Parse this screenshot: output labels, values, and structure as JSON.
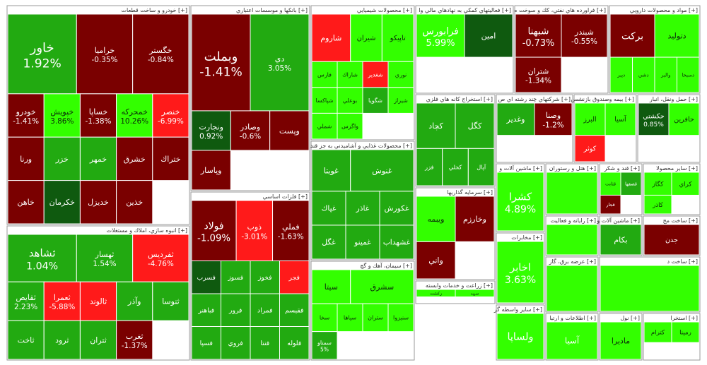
{
  "chart_data": {
    "type": "treemap",
    "colors": {
      "strong_up": "#33ff00",
      "up": "#22aa11",
      "dark_up": "#0f5a0f",
      "flat_down": "#8b1a1a",
      "down": "#7a0000",
      "strong_down": "#ff1a1a"
    },
    "sectors": [
      {
        "name": "خودرو و ساخت قطعات [+]",
        "col": 0,
        "row": 0,
        "tiles": [
          {
            "label": "خاور",
            "value": "1.92%",
            "shade": "up",
            "w": 0.37,
            "h": 0.33
          },
          {
            "label": "خراميا",
            "value": "-0.35%",
            "shade": "down",
            "w": 0.3,
            "h": 0.33
          },
          {
            "label": "خگستر",
            "value": "-0.84%",
            "shade": "down",
            "w": 0.33,
            "h": 0.33
          },
          {
            "label": "خودرو",
            "value": "-1.41%",
            "shade": "down",
            "w": 0.27,
            "h": 0.33
          },
          {
            "label": "خپويش",
            "value": "3.86%",
            "shade": "strong_up",
            "w": 0.36,
            "h": 0.2
          },
          {
            "label": "خساپا",
            "value": "-1.38%",
            "shade": "down",
            "w": 0.27,
            "h": 0.34
          },
          {
            "label": "خمحركه",
            "value": "10.26%",
            "shade": "strong_up",
            "w": 0.2,
            "h": 0.2
          },
          {
            "label": "خنصر",
            "value": "-6.99%",
            "shade": "strong_down",
            "w": 0.16,
            "h": 0.2
          },
          {
            "label": "ورنا",
            "value": "",
            "shade": "down",
            "w": 0.1,
            "h": 0.13
          },
          {
            "label": "خزر",
            "value": "",
            "shade": "up",
            "w": 0.1,
            "h": 0.1
          },
          {
            "label": "خمهر",
            "value": "",
            "shade": "up",
            "w": 0.1,
            "h": 0.1
          },
          {
            "label": "خشرق",
            "value": "",
            "shade": "down",
            "w": 0.1,
            "h": 0.1
          },
          {
            "label": "ختراك",
            "value": "",
            "shade": "down",
            "w": 0.1,
            "h": 0.1
          },
          {
            "label": "خاهن",
            "value": "",
            "shade": "down",
            "w": 0.1,
            "h": 0.1
          },
          {
            "label": "خكرمان",
            "value": "",
            "shade": "dark_up",
            "w": 0.1,
            "h": 0.1
          },
          {
            "label": "خديزل",
            "value": "",
            "shade": "down",
            "w": 0.1,
            "h": 0.1
          },
          {
            "label": "خذين",
            "value": "",
            "shade": "down",
            "w": 0.1,
            "h": 0.1
          }
        ]
      },
      {
        "name": "بانكها و موسسات اعتباري [+]",
        "col": 1,
        "row": 0,
        "tiles": [
          {
            "label": "وبملت",
            "value": "-1.41%",
            "shade": "down"
          },
          {
            "label": "دي",
            "value": "3.05%",
            "shade": "up"
          },
          {
            "label": "ونجارت",
            "value": "0.92%",
            "shade": "dark_up"
          },
          {
            "label": "وصادر",
            "value": "-0.6%",
            "shade": "down"
          },
          {
            "label": "وپست",
            "value": "",
            "shade": "down"
          },
          {
            "label": "وپاسار",
            "value": "",
            "shade": "down"
          }
        ]
      },
      {
        "name": "محصولات شيميايي [+]",
        "col": 2,
        "row": 0,
        "tiles": [
          {
            "label": "شاروم",
            "value": "",
            "shade": "strong_down"
          },
          {
            "label": "شيران",
            "value": "",
            "shade": "strong_up"
          },
          {
            "label": "تاپيكو",
            "value": "",
            "shade": "strong_up"
          },
          {
            "label": "فارس",
            "value": "",
            "shade": "strong_up"
          },
          {
            "label": "شاراك",
            "value": "",
            "shade": "strong_up"
          },
          {
            "label": "شغدير",
            "value": "",
            "shade": "strong_down"
          },
          {
            "label": "نوري",
            "value": "",
            "shade": "strong_up"
          },
          {
            "label": "شپاكسا",
            "value": "",
            "shade": "strong_up"
          },
          {
            "label": "بوعلي",
            "value": "",
            "shade": "strong_up"
          },
          {
            "label": "شگويا",
            "value": "",
            "shade": "up"
          },
          {
            "label": "شيراز",
            "value": "",
            "shade": "strong_up"
          },
          {
            "label": "شملي",
            "value": "",
            "shade": "strong_up"
          },
          {
            "label": "واگرس",
            "value": "",
            "shade": "strong_up"
          }
        ]
      },
      {
        "name": "فعاليتهاي كمكي به نهادهاي مالي وا [+]",
        "col": 3,
        "row": 0,
        "tiles": [
          {
            "label": "فرابورس",
            "value": "5.99%",
            "shade": "strong_up"
          },
          {
            "label": "امين",
            "value": "",
            "shade": "dark_up"
          }
        ]
      },
      {
        "name": "فراورده هاي نفتي، كك و سوخت ه [+]",
        "col": 4,
        "row": 0,
        "tiles": [
          {
            "label": "شبهنا",
            "value": "-0.73%",
            "shade": "down"
          },
          {
            "label": "شبندر",
            "value": "-0.55%",
            "shade": "down"
          },
          {
            "label": "شتران",
            "value": "-1.34%",
            "shade": "down"
          }
        ]
      },
      {
        "name": "مواد و محصولات دارويي [+]",
        "col": 5,
        "row": 0,
        "tiles": [
          {
            "label": "بركت",
            "value": "",
            "shade": "down"
          },
          {
            "label": "دتوليد",
            "value": "",
            "shade": "strong_up"
          },
          {
            "label": "ديبر",
            "value": "",
            "shade": "strong_up"
          },
          {
            "label": "دشي",
            "value": "",
            "shade": "strong_up"
          },
          {
            "label": "والبر",
            "value": "",
            "shade": "strong_up"
          },
          {
            "label": "دسبحا",
            "value": "",
            "shade": "strong_up"
          }
        ]
      },
      {
        "name": "انبوه سازي، املاك و مستغلات [+]",
        "col": 0,
        "row": 1,
        "tiles": [
          {
            "label": "ثشاهد",
            "value": "1.04%",
            "shade": "up"
          },
          {
            "label": "ثهسار",
            "value": "1.54%",
            "shade": "up"
          },
          {
            "label": "ثفرديس",
            "value": "-4.76%",
            "shade": "strong_down"
          },
          {
            "label": "ثقايص",
            "value": "2.23%",
            "shade": "up"
          },
          {
            "label": "ثعمرا",
            "value": "-5.88%",
            "shade": "strong_down"
          },
          {
            "label": "ثالوند",
            "value": "",
            "shade": "strong_down"
          },
          {
            "label": "وآذر",
            "value": "",
            "shade": "up"
          },
          {
            "label": "ثنوسا",
            "value": "",
            "shade": "up"
          },
          {
            "label": "ثاخت",
            "value": "",
            "shade": "up"
          },
          {
            "label": "ثرود",
            "value": "",
            "shade": "up"
          },
          {
            "label": "ثتران",
            "value": "",
            "shade": "up"
          },
          {
            "label": "ثغرب",
            "value": "-1.37%",
            "shade": "down"
          }
        ]
      },
      {
        "name": "فلزات اساسي [+]",
        "col": 1,
        "row": 1,
        "tiles": [
          {
            "label": "فولاد",
            "value": "-1.09%",
            "shade": "down"
          },
          {
            "label": "ذوب",
            "value": "-3.01%",
            "shade": "strong_down"
          },
          {
            "label": "فملي",
            "value": "-1.63%",
            "shade": "down"
          },
          {
            "label": "فسرب",
            "value": "",
            "shade": "dark_up"
          },
          {
            "label": "فسوز",
            "value": "",
            "shade": "up"
          },
          {
            "label": "فخوز",
            "value": "",
            "shade": "up"
          },
          {
            "label": "فجر",
            "value": "",
            "shade": "strong_down"
          },
          {
            "label": "فباهنر",
            "value": "",
            "shade": "up"
          },
          {
            "label": "فرور",
            "value": "",
            "shade": "up"
          },
          {
            "label": "فمراد",
            "value": "",
            "shade": "up"
          },
          {
            "label": "فقيسم",
            "value": "",
            "shade": "up"
          },
          {
            "label": "فسپا",
            "value": "",
            "shade": "up"
          },
          {
            "label": "فروي",
            "value": "",
            "shade": "up"
          },
          {
            "label": "فنتا",
            "value": "",
            "shade": "up"
          },
          {
            "label": "فلوله",
            "value": "",
            "shade": "up"
          }
        ]
      },
      {
        "name": "محصولات غذايي و آشاميدني به جز قند [+]",
        "col": 2,
        "row": 1,
        "tiles": [
          {
            "label": "غويتا",
            "value": "",
            "shade": "up"
          },
          {
            "label": "غنوش",
            "value": "",
            "shade": "up"
          },
          {
            "label": "غپاك",
            "value": "",
            "shade": "up"
          },
          {
            "label": "غاذر",
            "value": "",
            "shade": "up"
          },
          {
            "label": "غكورش",
            "value": "",
            "shade": "up"
          },
          {
            "label": "غگل",
            "value": "",
            "shade": "up"
          },
          {
            "label": "غمينو",
            "value": "",
            "shade": "up"
          },
          {
            "label": "غشهداب",
            "value": "",
            "shade": "up"
          }
        ]
      },
      {
        "name": "استخراج كانه هاي فلزي [+]",
        "col": 3,
        "row": 1,
        "tiles": [
          {
            "label": "كچاد",
            "value": "",
            "shade": "up"
          },
          {
            "label": "كگل",
            "value": "",
            "shade": "up"
          },
          {
            "label": "فزر",
            "value": "",
            "shade": "up"
          },
          {
            "label": "كجلي",
            "value": "",
            "shade": "up"
          },
          {
            "label": "آپال",
            "value": "",
            "shade": "up"
          }
        ]
      },
      {
        "name": "شركتهاي چند رشته اي ص [+]",
        "col": 4,
        "row": 1,
        "tiles": [
          {
            "label": "وغدير",
            "value": "",
            "shade": "up"
          },
          {
            "label": "وصنا",
            "value": "-1.2%",
            "shade": "down"
          }
        ]
      },
      {
        "name": "بيمه وصندوق بازنشس [+]",
        "col": 5,
        "row": 1,
        "tiles": [
          {
            "label": "البرز",
            "value": "",
            "shade": "strong_up"
          },
          {
            "label": "آسيا",
            "value": "",
            "shade": "strong_up"
          },
          {
            "label": "كوثر",
            "value": "",
            "shade": "strong_down"
          }
        ]
      },
      {
        "name": "حمل ونقل، انبار [+]",
        "col": 6,
        "row": 1,
        "tiles": [
          {
            "label": "حكشتي",
            "value": "0.85%",
            "shade": "dark_up"
          },
          {
            "label": "حافرين",
            "value": "",
            "shade": "strong_up"
          }
        ]
      },
      {
        "name": "سيمان، آهك و گچ [+]",
        "col": 2,
        "row": 2,
        "tiles": [
          {
            "label": "سيتا",
            "value": "",
            "shade": "strong_up"
          },
          {
            "label": "سشرق",
            "value": "",
            "shade": "strong_up"
          },
          {
            "label": "سخا",
            "value": "",
            "shade": "strong_up"
          },
          {
            "label": "سپاها",
            "value": "",
            "shade": "strong_up"
          },
          {
            "label": "ستران",
            "value": "",
            "shade": "strong_up"
          },
          {
            "label": "سنيزوا",
            "value": "",
            "shade": "strong_up"
          },
          {
            "label": "سمتاو",
            "value": "5%",
            "shade": "up"
          }
        ]
      },
      {
        "name": "سرمايه گذاريها [+]",
        "col": 3,
        "row": 2,
        "tiles": [
          {
            "label": "ويبمه",
            "value": "",
            "shade": "strong_up"
          },
          {
            "label": "وخارزم",
            "value": "",
            "shade": "down"
          },
          {
            "label": "واني",
            "value": "",
            "shade": "down"
          }
        ]
      },
      {
        "name": "زراعت و خدمات وابسته [+]",
        "col": 3,
        "row": 3,
        "tiles": [
          {
            "label": "زكشت",
            "value": "",
            "shade": "strong_up"
          },
          {
            "label": "سپيد",
            "value": "",
            "shade": "strong_up"
          }
        ]
      },
      {
        "name": "ماشين آلات و [+]",
        "col": 4,
        "row": 2,
        "tiles": [
          {
            "label": "كشرا",
            "value": "4.89%",
            "shade": "strong_up"
          }
        ]
      },
      {
        "name": "مخابرات [+]",
        "col": 4,
        "row": 3,
        "tiles": [
          {
            "label": "اخابر",
            "value": "3.63%",
            "shade": "strong_up"
          }
        ]
      },
      {
        "name": "هتل و رستوران [+]",
        "col": 5,
        "row": 2,
        "tiles": []
      },
      {
        "name": "قند و شكر [+]",
        "col": 6,
        "row": 2,
        "tiles": [
          {
            "label": "قثابت",
            "value": "",
            "shade": "strong_up"
          },
          {
            "label": "قصفها",
            "value": "",
            "shade": "up"
          },
          {
            "label": "قجار",
            "value": "",
            "shade": "down"
          }
        ]
      },
      {
        "name": "ساير محصولا [+]",
        "col": 7,
        "row": 2,
        "tiles": [
          {
            "label": "كگاز",
            "value": "",
            "shade": "strong_up"
          },
          {
            "label": "كراي",
            "value": "",
            "shade": "strong_up"
          },
          {
            "label": "كاذر",
            "value": "",
            "shade": "strong_up"
          }
        ]
      },
      {
        "name": "رايانه و فعاليت [+]",
        "col": 5,
        "row": 3,
        "tiles": []
      },
      {
        "name": "ماشين آلات و [+]",
        "col": 6,
        "row": 3,
        "tiles": [
          {
            "label": "بكام",
            "value": "",
            "shade": "up"
          }
        ]
      },
      {
        "name": "ساخت مح [+]",
        "col": 7,
        "row": 3,
        "tiles": [
          {
            "label": "جدن",
            "value": "",
            "shade": "down"
          }
        ]
      },
      {
        "name": "ساير واسطه گر [+]",
        "col": 3,
        "row": 4,
        "tiles": [
          {
            "label": "ولساپا",
            "value": "",
            "shade": "strong_up"
          }
        ]
      },
      {
        "name": "عرضه برق، گاز [+]",
        "col": 4,
        "row": 4,
        "tiles": []
      },
      {
        "name": "ساخت د [+]",
        "col": 6,
        "row": 4,
        "tiles": []
      },
      {
        "name": "استخرا [+]",
        "col": 6,
        "row": 5,
        "tiles": [
          {
            "label": "كترام",
            "value": "",
            "shade": "strong_up"
          },
          {
            "label": "رمپنا",
            "value": "",
            "shade": "strong_up"
          }
        ]
      },
      {
        "name": "اطلاعات و ارتبا [+]",
        "col": 4,
        "row": 5,
        "tiles": [
          {
            "label": "آسيا",
            "value": "",
            "shade": "strong_up"
          }
        ]
      },
      {
        "name": "نول [+]",
        "col": 5,
        "row": 5,
        "tiles": [
          {
            "label": "ماديرا",
            "value": "",
            "shade": "strong_up"
          }
        ]
      }
    ]
  }
}
